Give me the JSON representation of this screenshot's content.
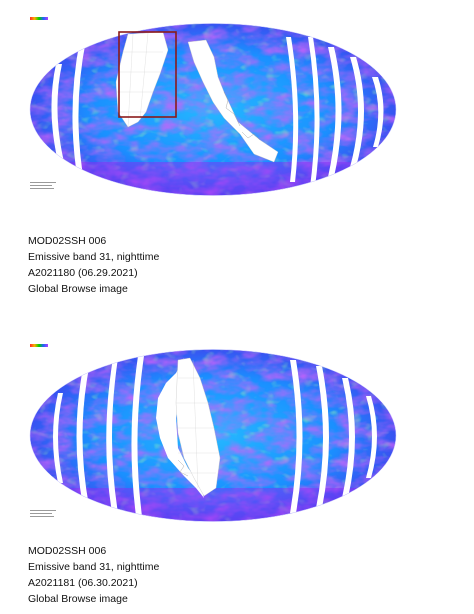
{
  "colors": {
    "background": "#ffffff",
    "cold_cloud": "#a020f0",
    "warm_surface": "#1fd0ff",
    "mid_range": "#2a5cff",
    "no_data_swath_gap": "#ffffff",
    "highlight_box": "#8b1a1a"
  },
  "panels": [
    {
      "caption": {
        "product": "MOD02SSH 006",
        "band": "Emissive band 31, nighttime",
        "granule": "A2021180 (06.29.2021)",
        "type": "Global Browse image"
      },
      "highlight_box": true
    },
    {
      "caption": {
        "product": "MOD02SSH 006",
        "band": "Emissive band 31, nighttime",
        "granule": "A2021181 (06.30.2021)",
        "type": "Global Browse image"
      },
      "highlight_box": false
    }
  ]
}
